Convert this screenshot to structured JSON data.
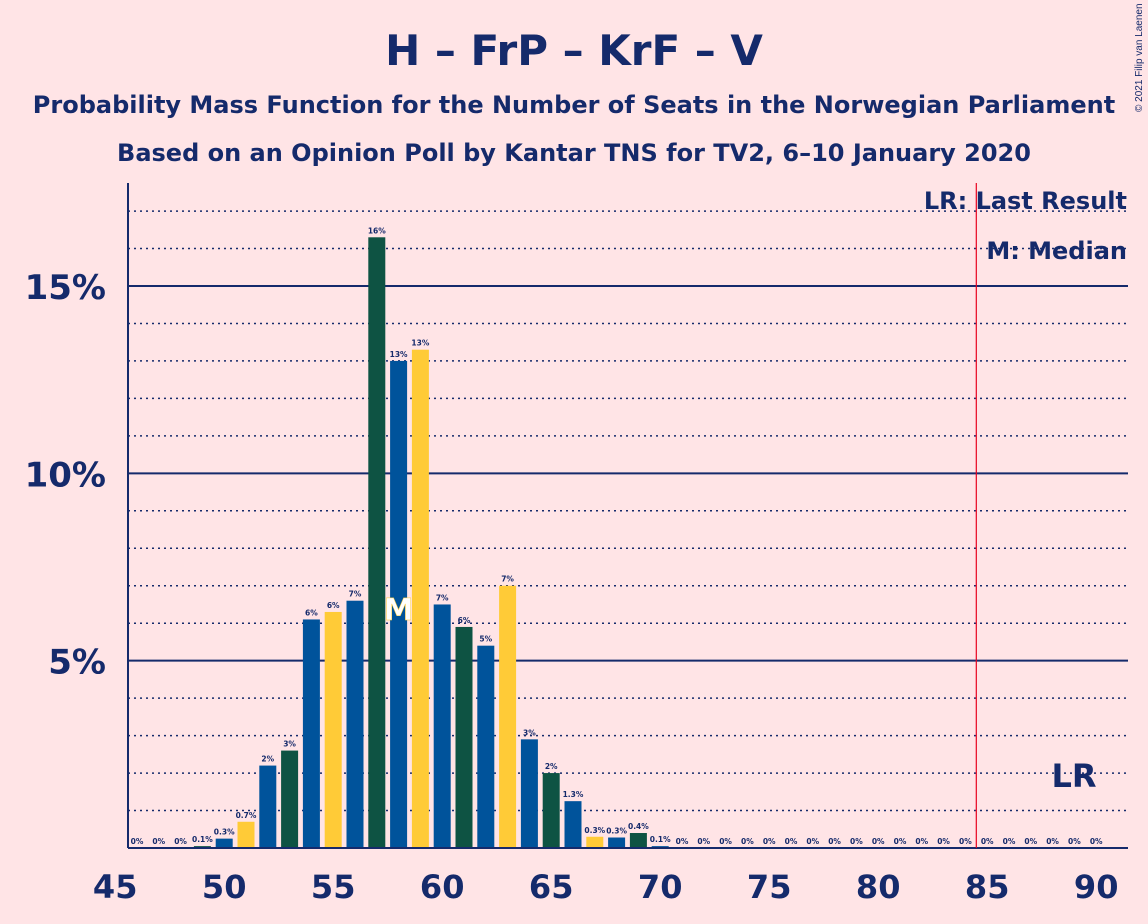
{
  "chart_data": {
    "type": "bar",
    "title": "H – FrP – KrF – V",
    "subtitle1": "Probability Mass Function for the Number of Seats in the Norwegian Parliament",
    "subtitle2": "Based on an Opinion Poll by Kantar TNS for TV2, 6–10 January 2020",
    "copyright": "© 2021 Filip van Laenen",
    "legend": {
      "lr": "LR: Last Result",
      "m": "M: Median"
    },
    "xlim": [
      45,
      90
    ],
    "ylim": [
      0,
      17.8
    ],
    "x_ticks": [
      45,
      50,
      55,
      60,
      65,
      70,
      75,
      80,
      85,
      90
    ],
    "y_ticks": [
      {
        "value": 5,
        "label": "5%"
      },
      {
        "value": 10,
        "label": "10%"
      },
      {
        "value": 15,
        "label": "15%"
      }
    ],
    "grid": true,
    "median_seat": 58,
    "median_marker": "M",
    "last_result_seat": 84.5,
    "last_result_marker": "LR",
    "colors": {
      "background": "#ffe4e6",
      "text": "#152a6b",
      "blue": "#00539b",
      "green": "#0e5343",
      "yellow": "#ffcb37",
      "lr_line": "#e8001e"
    },
    "bar_color_cycle": [
      "blue",
      "yellow",
      "blue",
      "green"
    ],
    "bars": [
      {
        "seat": 46,
        "value": 0,
        "label": "0%"
      },
      {
        "seat": 47,
        "value": 0,
        "label": "0%"
      },
      {
        "seat": 48,
        "value": 0,
        "label": "0%"
      },
      {
        "seat": 49,
        "value": 0.05,
        "label": "0.1%"
      },
      {
        "seat": 50,
        "value": 0.25,
        "label": "0.3%"
      },
      {
        "seat": 51,
        "value": 0.7,
        "label": "0.7%"
      },
      {
        "seat": 52,
        "value": 2.2,
        "label": "2%"
      },
      {
        "seat": 53,
        "value": 2.6,
        "label": "3%"
      },
      {
        "seat": 54,
        "value": 6.1,
        "label": "6%"
      },
      {
        "seat": 55,
        "value": 6.3,
        "label": "6%"
      },
      {
        "seat": 56,
        "value": 6.6,
        "label": "7%"
      },
      {
        "seat": 57,
        "value": 16.3,
        "label": "16%"
      },
      {
        "seat": 58,
        "value": 13.0,
        "label": "13%"
      },
      {
        "seat": 59,
        "value": 13.3,
        "label": "13%"
      },
      {
        "seat": 60,
        "value": 6.5,
        "label": "7%"
      },
      {
        "seat": 61,
        "value": 5.9,
        "label": "6%"
      },
      {
        "seat": 62,
        "value": 5.4,
        "label": "5%"
      },
      {
        "seat": 63,
        "value": 7.0,
        "label": "7%"
      },
      {
        "seat": 64,
        "value": 2.9,
        "label": "3%"
      },
      {
        "seat": 65,
        "value": 2.0,
        "label": "2%"
      },
      {
        "seat": 66,
        "value": 1.25,
        "label": "1.3%"
      },
      {
        "seat": 67,
        "value": 0.3,
        "label": "0.3%"
      },
      {
        "seat": 68,
        "value": 0.28,
        "label": "0.3%"
      },
      {
        "seat": 69,
        "value": 0.4,
        "label": "0.4%"
      },
      {
        "seat": 70,
        "value": 0.05,
        "label": "0.1%"
      },
      {
        "seat": 71,
        "value": 0,
        "label": "0%"
      },
      {
        "seat": 72,
        "value": 0,
        "label": "0%"
      },
      {
        "seat": 73,
        "value": 0,
        "label": "0%"
      },
      {
        "seat": 74,
        "value": 0,
        "label": "0%"
      },
      {
        "seat": 75,
        "value": 0,
        "label": "0%"
      },
      {
        "seat": 76,
        "value": 0,
        "label": "0%"
      },
      {
        "seat": 77,
        "value": 0,
        "label": "0%"
      },
      {
        "seat": 78,
        "value": 0,
        "label": "0%"
      },
      {
        "seat": 79,
        "value": 0,
        "label": "0%"
      },
      {
        "seat": 80,
        "value": 0,
        "label": "0%"
      },
      {
        "seat": 81,
        "value": 0,
        "label": "0%"
      },
      {
        "seat": 82,
        "value": 0,
        "label": "0%"
      },
      {
        "seat": 83,
        "value": 0,
        "label": "0%"
      },
      {
        "seat": 84,
        "value": 0,
        "label": "0%"
      },
      {
        "seat": 85,
        "value": 0,
        "label": "0%"
      },
      {
        "seat": 86,
        "value": 0,
        "label": "0%"
      },
      {
        "seat": 87,
        "value": 0,
        "label": "0%"
      },
      {
        "seat": 88,
        "value": 0,
        "label": "0%"
      },
      {
        "seat": 89,
        "value": 0,
        "label": "0%"
      },
      {
        "seat": 90,
        "value": 0,
        "label": "0%"
      }
    ]
  }
}
